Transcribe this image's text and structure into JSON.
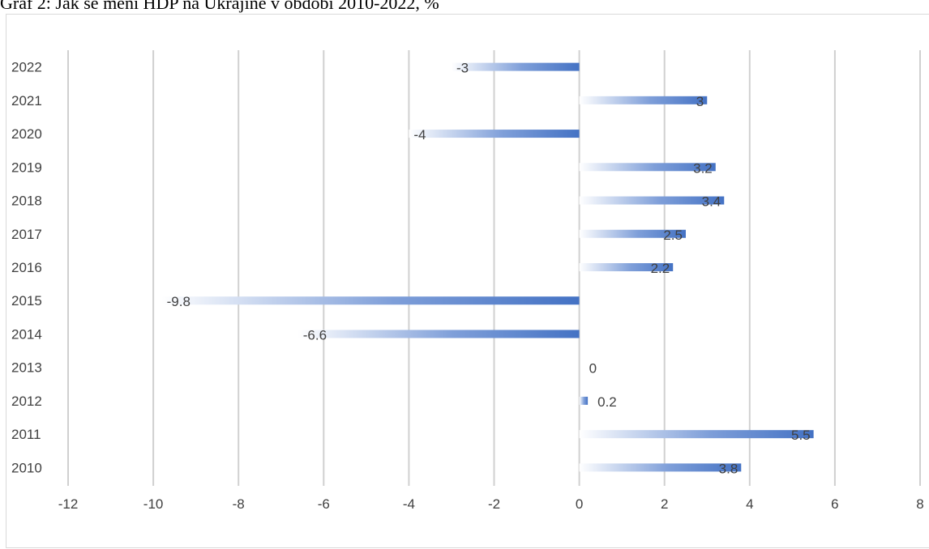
{
  "caption": "Graf 2: Jak se mění HDP na Ukrajině v období 2010-2022, %",
  "colors": {
    "bar_dark": "#4472c4",
    "bar_mid": "#7f9fd9",
    "bar_light": "#ffffff",
    "grid": "#d0d0d0",
    "axis_text": "#404040"
  },
  "chart_data": {
    "type": "bar",
    "orientation": "horizontal",
    "title": "",
    "xlabel": "",
    "ylabel": "",
    "categories": [
      "2010",
      "2011",
      "2012",
      "2013",
      "2014",
      "2015",
      "2016",
      "2017",
      "2018",
      "2019",
      "2020",
      "2021",
      "2022"
    ],
    "values": [
      3.8,
      5.5,
      0.2,
      0,
      -6.6,
      -9.8,
      2.2,
      2.5,
      3.4,
      3.2,
      -4,
      3,
      -3
    ],
    "data_labels": [
      "3.8",
      "5.5",
      "0.2",
      "0",
      "-6.6",
      "-9.8",
      "2.2",
      "2.5",
      "3.4",
      "3.2",
      "-4",
      "3",
      "-3"
    ],
    "xlim": [
      -12,
      8
    ],
    "x_ticks": [
      "-12",
      "-10",
      "-8",
      "-6",
      "-4",
      "-2",
      "0",
      "2",
      "4",
      "6",
      "8"
    ],
    "grid": true,
    "legend": false,
    "fill": "gradient fading toward the zero-distant end"
  }
}
